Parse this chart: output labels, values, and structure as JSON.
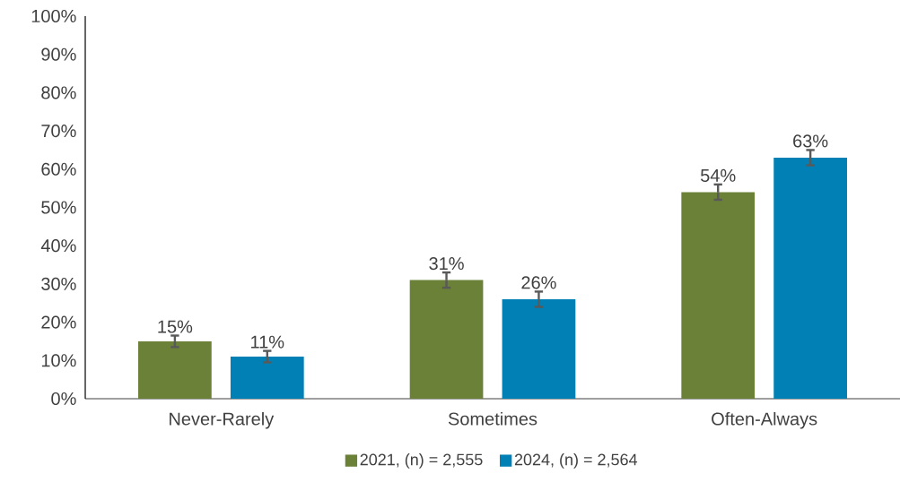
{
  "chart_data": {
    "type": "bar",
    "categories": [
      "Never-Rarely",
      "Sometimes",
      "Often-Always"
    ],
    "series": [
      {
        "name": "2021, (n) = 2,555",
        "color": "#6b8138",
        "values": [
          15,
          31,
          54
        ],
        "errors": [
          1.5,
          2,
          2
        ],
        "value_labels": [
          "15%",
          "31%",
          "54%"
        ]
      },
      {
        "name": "2024, (n) = 2,564",
        "color": "#0080b4",
        "values": [
          11,
          26,
          63
        ],
        "errors": [
          1.5,
          2,
          2
        ],
        "value_labels": [
          "11%",
          "26%",
          "63%"
        ]
      }
    ],
    "ylim": [
      0,
      100
    ],
    "yticks": [
      {
        "value": 0,
        "label": "0%"
      },
      {
        "value": 10,
        "label": "10%"
      },
      {
        "value": 20,
        "label": "20%"
      },
      {
        "value": 30,
        "label": "30%"
      },
      {
        "value": 40,
        "label": "40%"
      },
      {
        "value": 50,
        "label": "50%"
      },
      {
        "value": 60,
        "label": "60%"
      },
      {
        "value": 70,
        "label": "70%"
      },
      {
        "value": 80,
        "label": "80%"
      },
      {
        "value": 90,
        "label": "90%"
      },
      {
        "value": 100,
        "label": "100%"
      }
    ],
    "grid": false,
    "legend": "bottom"
  }
}
